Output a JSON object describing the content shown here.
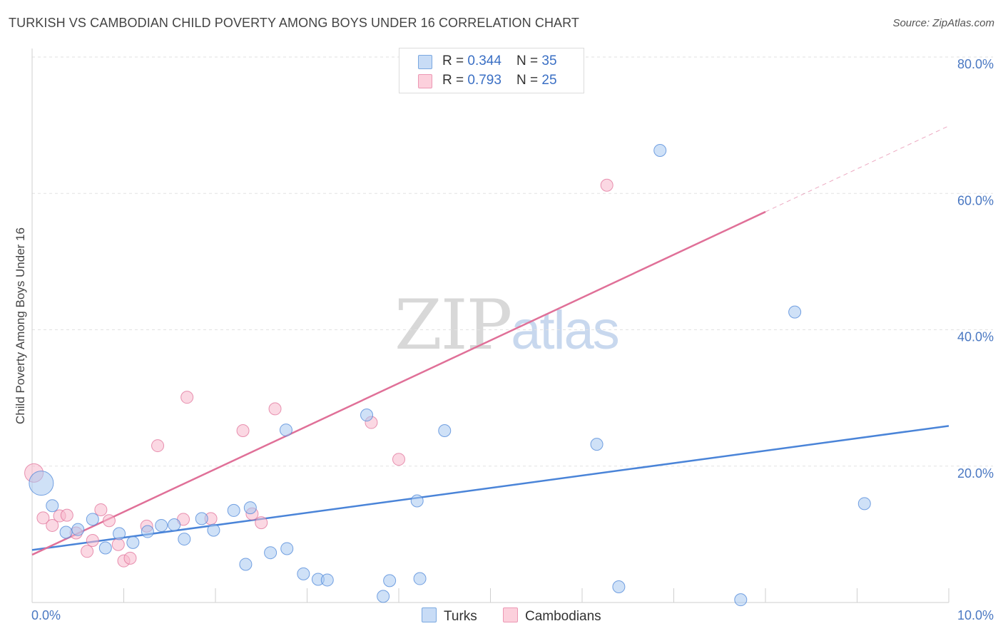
{
  "header": {
    "title": "TURKISH VS CAMBODIAN CHILD POVERTY AMONG BOYS UNDER 16 CORRELATION CHART",
    "source": "Source: ZipAtlas.com"
  },
  "watermark": {
    "zip": "ZIP",
    "atlas": "atlas"
  },
  "legend": {
    "rows": [
      {
        "r_label": "R = ",
        "r_value": "0.344",
        "n_label": "N = ",
        "n_value": "35",
        "color": "#a8c8f0"
      },
      {
        "r_label": "R = ",
        "r_value": "0.793",
        "n_label": "N = ",
        "n_value": "25",
        "color": "#f8b8cc"
      }
    ]
  },
  "bottom_legend": [
    {
      "label": "Turks",
      "color": "#a8c8f0"
    },
    {
      "label": "Cambodians",
      "color": "#f8b8cc"
    }
  ],
  "chart_data": {
    "type": "scatter",
    "ylabel": "Child Poverty Among Boys Under 16",
    "xlim": [
      0,
      10
    ],
    "ylim": [
      0,
      80
    ],
    "x_tick_labels": [
      {
        "value": 0,
        "label": "0.0%"
      },
      {
        "value": 10,
        "label": "10.0%"
      }
    ],
    "y_tick_labels": [
      {
        "value": 20,
        "label": "20.0%"
      },
      {
        "value": 40,
        "label": "40.0%"
      },
      {
        "value": 60,
        "label": "60.0%"
      },
      {
        "value": 80,
        "label": "80.0%"
      }
    ],
    "grid": true,
    "legend_position": "top-center",
    "series": [
      {
        "name": "Turks",
        "color": "#4a84d8",
        "fill": "#a8c8f0",
        "trend": {
          "x": [
            0,
            10
          ],
          "y": [
            7.7,
            25.9
          ]
        },
        "points": [
          {
            "x": 0.1,
            "y": 17.5,
            "size": "large"
          },
          {
            "x": 0.22,
            "y": 14.2
          },
          {
            "x": 0.37,
            "y": 10.3
          },
          {
            "x": 0.5,
            "y": 10.7
          },
          {
            "x": 0.66,
            "y": 12.2
          },
          {
            "x": 0.8,
            "y": 8.0
          },
          {
            "x": 0.95,
            "y": 10.1
          },
          {
            "x": 1.1,
            "y": 8.8
          },
          {
            "x": 1.26,
            "y": 10.4
          },
          {
            "x": 1.41,
            "y": 11.3
          },
          {
            "x": 1.55,
            "y": 11.4
          },
          {
            "x": 1.66,
            "y": 9.3
          },
          {
            "x": 1.85,
            "y": 12.3
          },
          {
            "x": 1.98,
            "y": 10.6
          },
          {
            "x": 2.2,
            "y": 13.5
          },
          {
            "x": 2.33,
            "y": 5.6
          },
          {
            "x": 2.38,
            "y": 13.9
          },
          {
            "x": 2.6,
            "y": 7.3
          },
          {
            "x": 2.77,
            "y": 25.3
          },
          {
            "x": 2.78,
            "y": 7.9
          },
          {
            "x": 2.96,
            "y": 4.2
          },
          {
            "x": 3.12,
            "y": 3.4
          },
          {
            "x": 3.22,
            "y": 3.3
          },
          {
            "x": 3.65,
            "y": 27.5
          },
          {
            "x": 3.83,
            "y": 0.9
          },
          {
            "x": 3.9,
            "y": 3.2
          },
          {
            "x": 4.2,
            "y": 14.9
          },
          {
            "x": 4.23,
            "y": 3.5
          },
          {
            "x": 4.5,
            "y": 25.2
          },
          {
            "x": 6.16,
            "y": 23.2
          },
          {
            "x": 6.4,
            "y": 2.3
          },
          {
            "x": 6.85,
            "y": 66.3
          },
          {
            "x": 7.73,
            "y": 0.4
          },
          {
            "x": 8.32,
            "y": 42.6
          },
          {
            "x": 9.08,
            "y": 14.5
          }
        ]
      },
      {
        "name": "Cambodians",
        "color": "#e07098",
        "fill": "#f8b8cc",
        "trend": {
          "x": [
            0,
            8.0
          ],
          "y": [
            7.0,
            57.3
          ]
        },
        "trend_extension": {
          "x": [
            8.0,
            10
          ],
          "y": [
            57.3,
            69.9
          ]
        },
        "points": [
          {
            "x": 0.02,
            "y": 19.0,
            "size": "medium"
          },
          {
            "x": 0.12,
            "y": 12.4
          },
          {
            "x": 0.22,
            "y": 11.3
          },
          {
            "x": 0.3,
            "y": 12.7
          },
          {
            "x": 0.38,
            "y": 12.8
          },
          {
            "x": 0.48,
            "y": 10.2
          },
          {
            "x": 0.6,
            "y": 7.5
          },
          {
            "x": 0.66,
            "y": 9.1
          },
          {
            "x": 0.75,
            "y": 13.6
          },
          {
            "x": 0.84,
            "y": 12.0
          },
          {
            "x": 0.94,
            "y": 8.5
          },
          {
            "x": 1.0,
            "y": 6.1
          },
          {
            "x": 1.07,
            "y": 6.5
          },
          {
            "x": 1.25,
            "y": 11.2
          },
          {
            "x": 1.37,
            "y": 23.0
          },
          {
            "x": 1.65,
            "y": 12.2
          },
          {
            "x": 1.69,
            "y": 30.1
          },
          {
            "x": 1.95,
            "y": 12.3
          },
          {
            "x": 2.3,
            "y": 25.2
          },
          {
            "x": 2.4,
            "y": 13.0
          },
          {
            "x": 2.5,
            "y": 11.7
          },
          {
            "x": 2.65,
            "y": 28.4
          },
          {
            "x": 3.7,
            "y": 26.4
          },
          {
            "x": 4.0,
            "y": 21.0
          },
          {
            "x": 6.27,
            "y": 61.2
          }
        ]
      }
    ]
  }
}
